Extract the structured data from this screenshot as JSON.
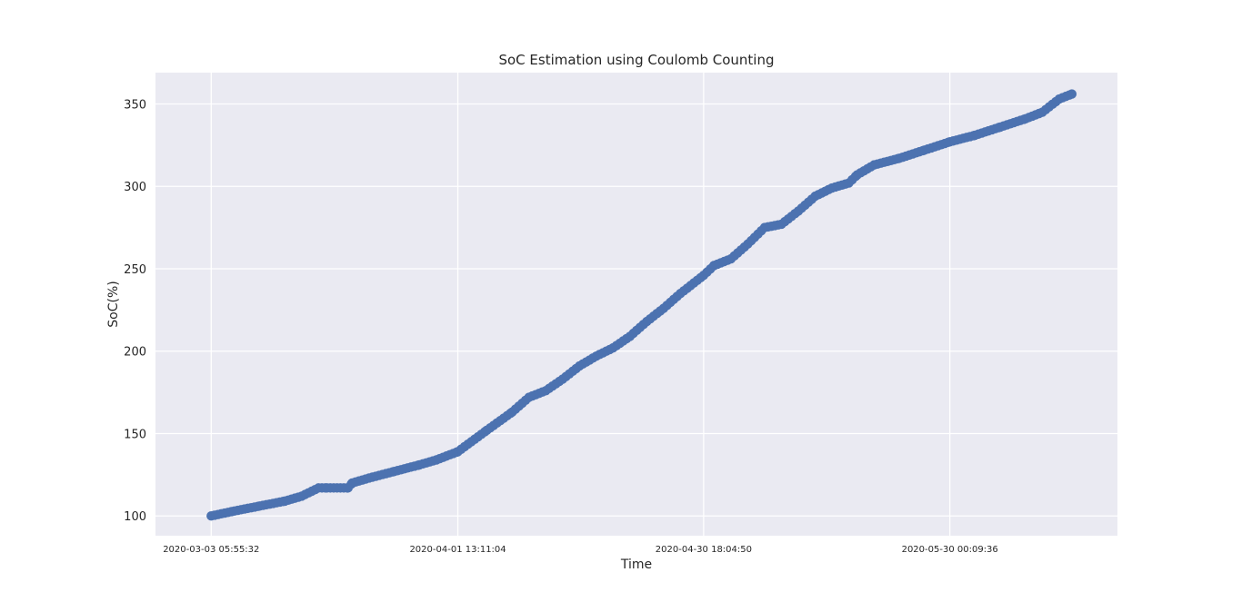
{
  "chart_data": {
    "type": "scatter",
    "title": "SoC Estimation using Coulomb Counting",
    "xlabel": "Time",
    "ylabel": "SoC(%)",
    "x_tick_labels": [
      "2020-03-03 05:55:32",
      "2020-04-01 13:11:04",
      "2020-04-30 18:04:50",
      "2020-05-30 00:09:36"
    ],
    "y_ticks": [
      100,
      150,
      200,
      250,
      300,
      350
    ],
    "ylim": [
      88,
      369
    ],
    "xlim": [
      "2020-02-25 15:00:00",
      "2020-06-18 22:00:00"
    ],
    "grid": true,
    "marker_color": "#4c72b0",
    "background_color": "#eaeaf2",
    "series": [
      {
        "points": [
          [
            "2020-03-03 05:55:32",
            100
          ],
          [
            "2020-03-06 00:00:00",
            103
          ],
          [
            "2020-03-09 00:00:00",
            106
          ],
          [
            "2020-03-12 00:00:00",
            109
          ],
          [
            "2020-03-14 00:00:00",
            112
          ],
          [
            "2020-03-16 00:00:00",
            117
          ],
          [
            "2020-03-17 00:00:00",
            117
          ],
          [
            "2020-03-19 12:00:00",
            117
          ],
          [
            "2020-03-20 00:00:00",
            120
          ],
          [
            "2020-03-22 00:00:00",
            123
          ],
          [
            "2020-03-25 00:00:00",
            127
          ],
          [
            "2020-03-28 00:00:00",
            131
          ],
          [
            "2020-03-30 00:00:00",
            134
          ],
          [
            "2020-04-01 13:11:04",
            139
          ],
          [
            "2020-04-05 00:00:00",
            152
          ],
          [
            "2020-04-08 00:00:00",
            163
          ],
          [
            "2020-04-10 00:00:00",
            172
          ],
          [
            "2020-04-12 00:00:00",
            176
          ],
          [
            "2020-04-14 00:00:00",
            183
          ],
          [
            "2020-04-16 00:00:00",
            191
          ],
          [
            "2020-04-18 00:00:00",
            197
          ],
          [
            "2020-04-20 00:00:00",
            202
          ],
          [
            "2020-04-22 00:00:00",
            209
          ],
          [
            "2020-04-24 00:00:00",
            218
          ],
          [
            "2020-04-26 00:00:00",
            226
          ],
          [
            "2020-04-28 00:00:00",
            235
          ],
          [
            "2020-04-30 18:04:50",
            246
          ],
          [
            "2020-05-02 00:00:00",
            252
          ],
          [
            "2020-05-04 00:00:00",
            256
          ],
          [
            "2020-05-06 00:00:00",
            265
          ],
          [
            "2020-05-08 00:00:00",
            275
          ],
          [
            "2020-05-10 00:00:00",
            277
          ],
          [
            "2020-05-12 00:00:00",
            285
          ],
          [
            "2020-05-14 00:00:00",
            294
          ],
          [
            "2020-05-16 00:00:00",
            299
          ],
          [
            "2020-05-18 00:00:00",
            302
          ],
          [
            "2020-05-19 00:00:00",
            307
          ],
          [
            "2020-05-21 00:00:00",
            313
          ],
          [
            "2020-05-24 00:00:00",
            317
          ],
          [
            "2020-05-27 00:00:00",
            322
          ],
          [
            "2020-05-30 00:09:36",
            327
          ],
          [
            "2020-06-02 00:00:00",
            331
          ],
          [
            "2020-06-05 00:00:00",
            336
          ],
          [
            "2020-06-08 00:00:00",
            341
          ],
          [
            "2020-06-10 00:00:00",
            345
          ],
          [
            "2020-06-12 00:00:00",
            353
          ],
          [
            "2020-06-13 12:00:00",
            356
          ]
        ]
      }
    ]
  }
}
